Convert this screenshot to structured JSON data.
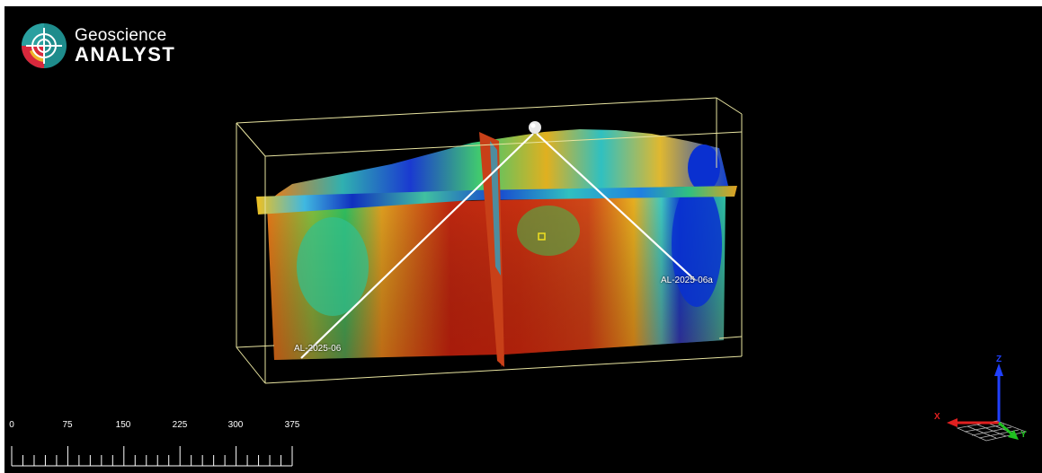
{
  "app": {
    "logo_line1": "Geoscience",
    "logo_line2": "ANALYST"
  },
  "drillholes": [
    {
      "name": "AL-2025-06"
    },
    {
      "name": "AL-2025-06a"
    }
  ],
  "scale_bar": {
    "labels": [
      "0",
      "75",
      "150",
      "225",
      "300",
      "375"
    ]
  },
  "axes": {
    "x_label": "X",
    "y_label": "Y",
    "z_label": "Z",
    "colors": {
      "x": "#e02020",
      "y": "#20c020",
      "z": "#2040ff"
    }
  },
  "colors": {
    "background": "#000000",
    "bounding_box": "#e8e4a0",
    "logo_teal": "#1e8c8c",
    "logo_red": "#d8283c",
    "logo_yellow": "#f0b428"
  }
}
